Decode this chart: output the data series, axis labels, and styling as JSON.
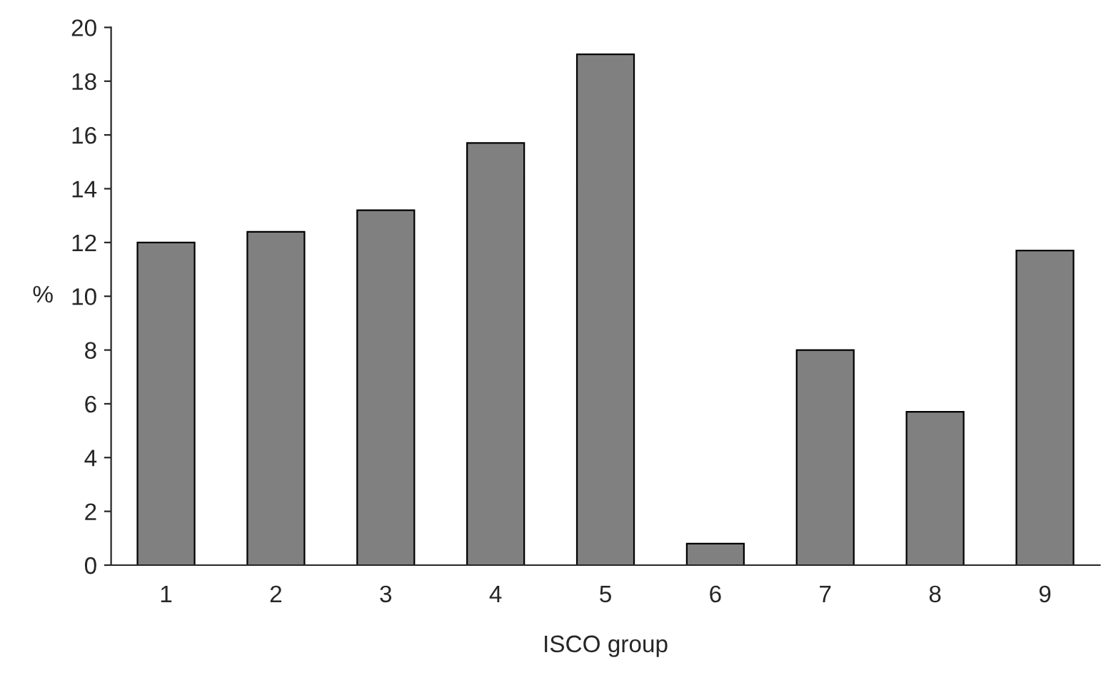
{
  "chart_data": {
    "type": "bar",
    "xlabel": "ISCO group",
    "ylabel": "%",
    "categories": [
      "1",
      "2",
      "3",
      "4",
      "5",
      "6",
      "7",
      "8",
      "9"
    ],
    "values": [
      12.0,
      12.4,
      13.2,
      15.7,
      19.0,
      0.8,
      8.0,
      5.7,
      11.7
    ],
    "color": "#808080",
    "ylim": [
      0,
      20
    ],
    "yticks": [
      0,
      2,
      4,
      6,
      8,
      10,
      12,
      14,
      16,
      18,
      20
    ],
    "grid": false
  }
}
